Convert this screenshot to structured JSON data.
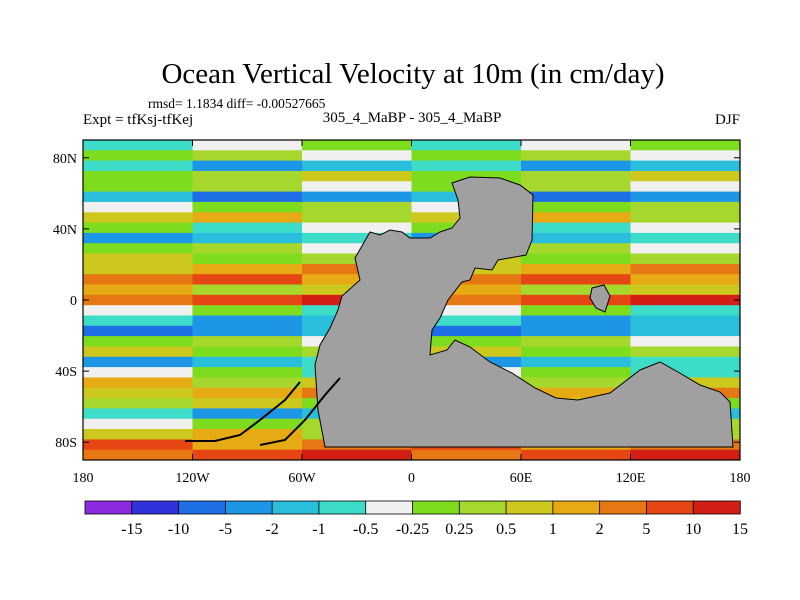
{
  "chart_data": {
    "type": "heatmap",
    "title": "Ocean Vertical Velocity at 10m (in cm/day)",
    "stats_line": "rmsd= 1.1834 diff= -0.00527665",
    "left_label": "Expt = tfKsj-tfKej",
    "center_label": "305_4_MaBP - 305_4_MaBP",
    "right_label": "DJF",
    "x_range": [
      -180,
      180
    ],
    "y_range": [
      -90,
      90
    ],
    "x_ticks": [
      {
        "value": -180,
        "label": "180"
      },
      {
        "value": -120,
        "label": "120W"
      },
      {
        "value": -60,
        "label": "60W"
      },
      {
        "value": 0,
        "label": "0"
      },
      {
        "value": 60,
        "label": "60E"
      },
      {
        "value": 120,
        "label": "120E"
      },
      {
        "value": 180,
        "label": "180"
      }
    ],
    "y_ticks": [
      {
        "value": 80,
        "label": "80N"
      },
      {
        "value": 40,
        "label": "40N"
      },
      {
        "value": 0,
        "label": "0"
      },
      {
        "value": -40,
        "label": "40S"
      },
      {
        "value": -80,
        "label": "80S"
      }
    ],
    "colorbar": {
      "colors": [
        "#8a2be2",
        "#3232dc",
        "#1e6ee6",
        "#1e96e6",
        "#28bedc",
        "#3cdcc8",
        "#f0f0f0",
        "#7ddc1e",
        "#a5d72d",
        "#cdc81e",
        "#e6aa14",
        "#e67814",
        "#e64614",
        "#d21e14"
      ],
      "labels": [
        "-15",
        "-10",
        "-5",
        "-2",
        "-1",
        "-0.5",
        "-0.25",
        "0.25",
        "0.5",
        "1",
        "2",
        "5",
        "10",
        "15"
      ]
    },
    "land_color": "#a0a0a0"
  }
}
